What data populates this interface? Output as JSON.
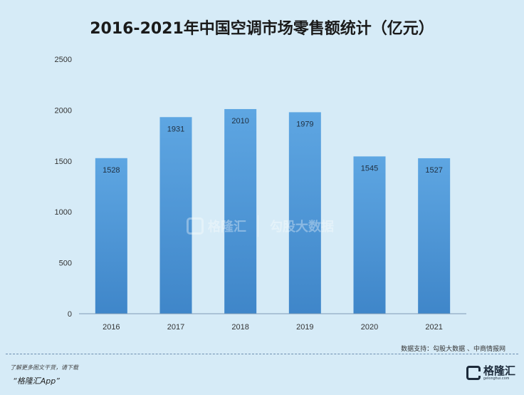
{
  "title": "2016-2021年中国空调市场零售额统计（亿元）",
  "source": "数据支持：勾股大数据 、中商情报网",
  "footer": {
    "line1": "了解更多图文干货，请下载",
    "line2": "“格隆汇App”"
  },
  "logo": {
    "name": "格隆汇",
    "url": "gelonghui.com"
  },
  "watermark": {
    "brand1": "格隆汇",
    "brand2": "勾股大数据"
  },
  "colors": {
    "bar_top": "#5ea6e2",
    "bar_bottom": "#3f86c9",
    "axis": "#7d9ab5",
    "background": "#d6ebf7"
  },
  "chart_data": {
    "type": "bar",
    "title": "2016-2021年中国空调市场零售额统计（亿元）",
    "categories": [
      "2016",
      "2017",
      "2018",
      "2019",
      "2020",
      "2021"
    ],
    "values": [
      1528,
      1931,
      2010,
      1979,
      1545,
      1527
    ],
    "data_labels": [
      "1528",
      "1931",
      "2010",
      "1979",
      "1545",
      "1527"
    ],
    "yticks": [
      "0",
      "500",
      "1000",
      "1500",
      "2000",
      "2500"
    ],
    "ylim": [
      0,
      2500
    ],
    "grid": false,
    "legend": "none"
  }
}
